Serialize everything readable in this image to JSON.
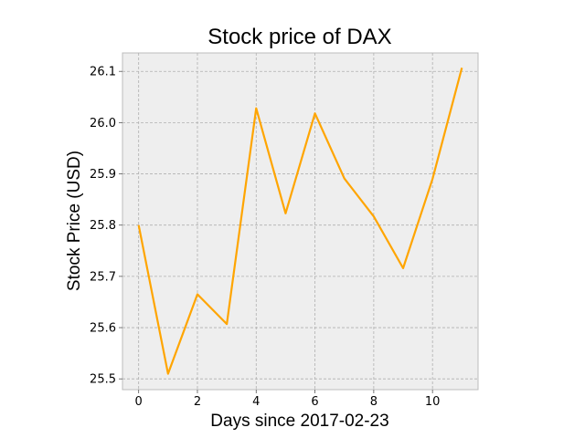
{
  "chart_data": {
    "type": "line",
    "title": "Stock price of DAX",
    "xlabel": "Days since 2017-02-23",
    "ylabel": "Stock Price (USD)",
    "x": [
      0,
      1,
      2,
      3,
      4,
      5,
      6,
      7,
      8,
      9,
      10,
      11
    ],
    "series": [
      {
        "values": [
          25.8,
          25.51,
          25.665,
          25.607,
          26.028,
          25.823,
          26.018,
          25.891,
          25.817,
          25.716,
          25.89,
          26.107
        ],
        "color": "#ffa500"
      }
    ],
    "xlim": [
      -0.55,
      11.55
    ],
    "ylim": [
      25.479,
      26.136
    ],
    "xticks": [
      0,
      2,
      4,
      6,
      8,
      10
    ],
    "xtick_labels": [
      "0",
      "2",
      "4",
      "6",
      "8",
      "10"
    ],
    "yticks": [
      25.5,
      25.6,
      25.7,
      25.8,
      25.9,
      26.0,
      26.1
    ],
    "ytick_labels": [
      "25.5",
      "25.6",
      "25.7",
      "25.8",
      "25.9",
      "26.0",
      "26.1"
    ],
    "grid": true,
    "legend": "none"
  }
}
